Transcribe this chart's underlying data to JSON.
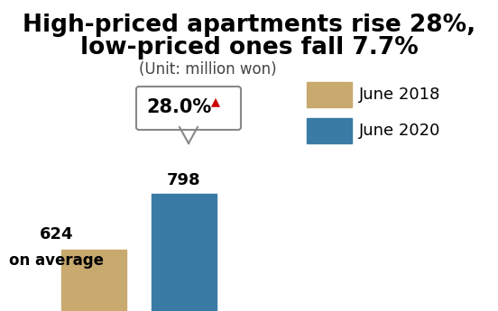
{
  "title_line1": "High-priced apartments rise 28%,",
  "title_line2": "low-priced ones fall 7.7%",
  "subtitle": "(Unit: million won)",
  "june2018_value": 624,
  "june2020_value": 798,
  "june2018_label": "624\non average",
  "june2020_label": "798",
  "color_2018": "#C8A96E",
  "color_2020": "#3A7BA6",
  "legend_label_2018": "June 2018",
  "legend_label_2020": "June 2020",
  "callout_text": "28.0%",
  "callout_arrow_color": "#CC0000",
  "background_color": "#FFFFFF",
  "title_fontsize": 19,
  "subtitle_fontsize": 12,
  "label_fontsize": 13,
  "legend_fontsize": 13
}
